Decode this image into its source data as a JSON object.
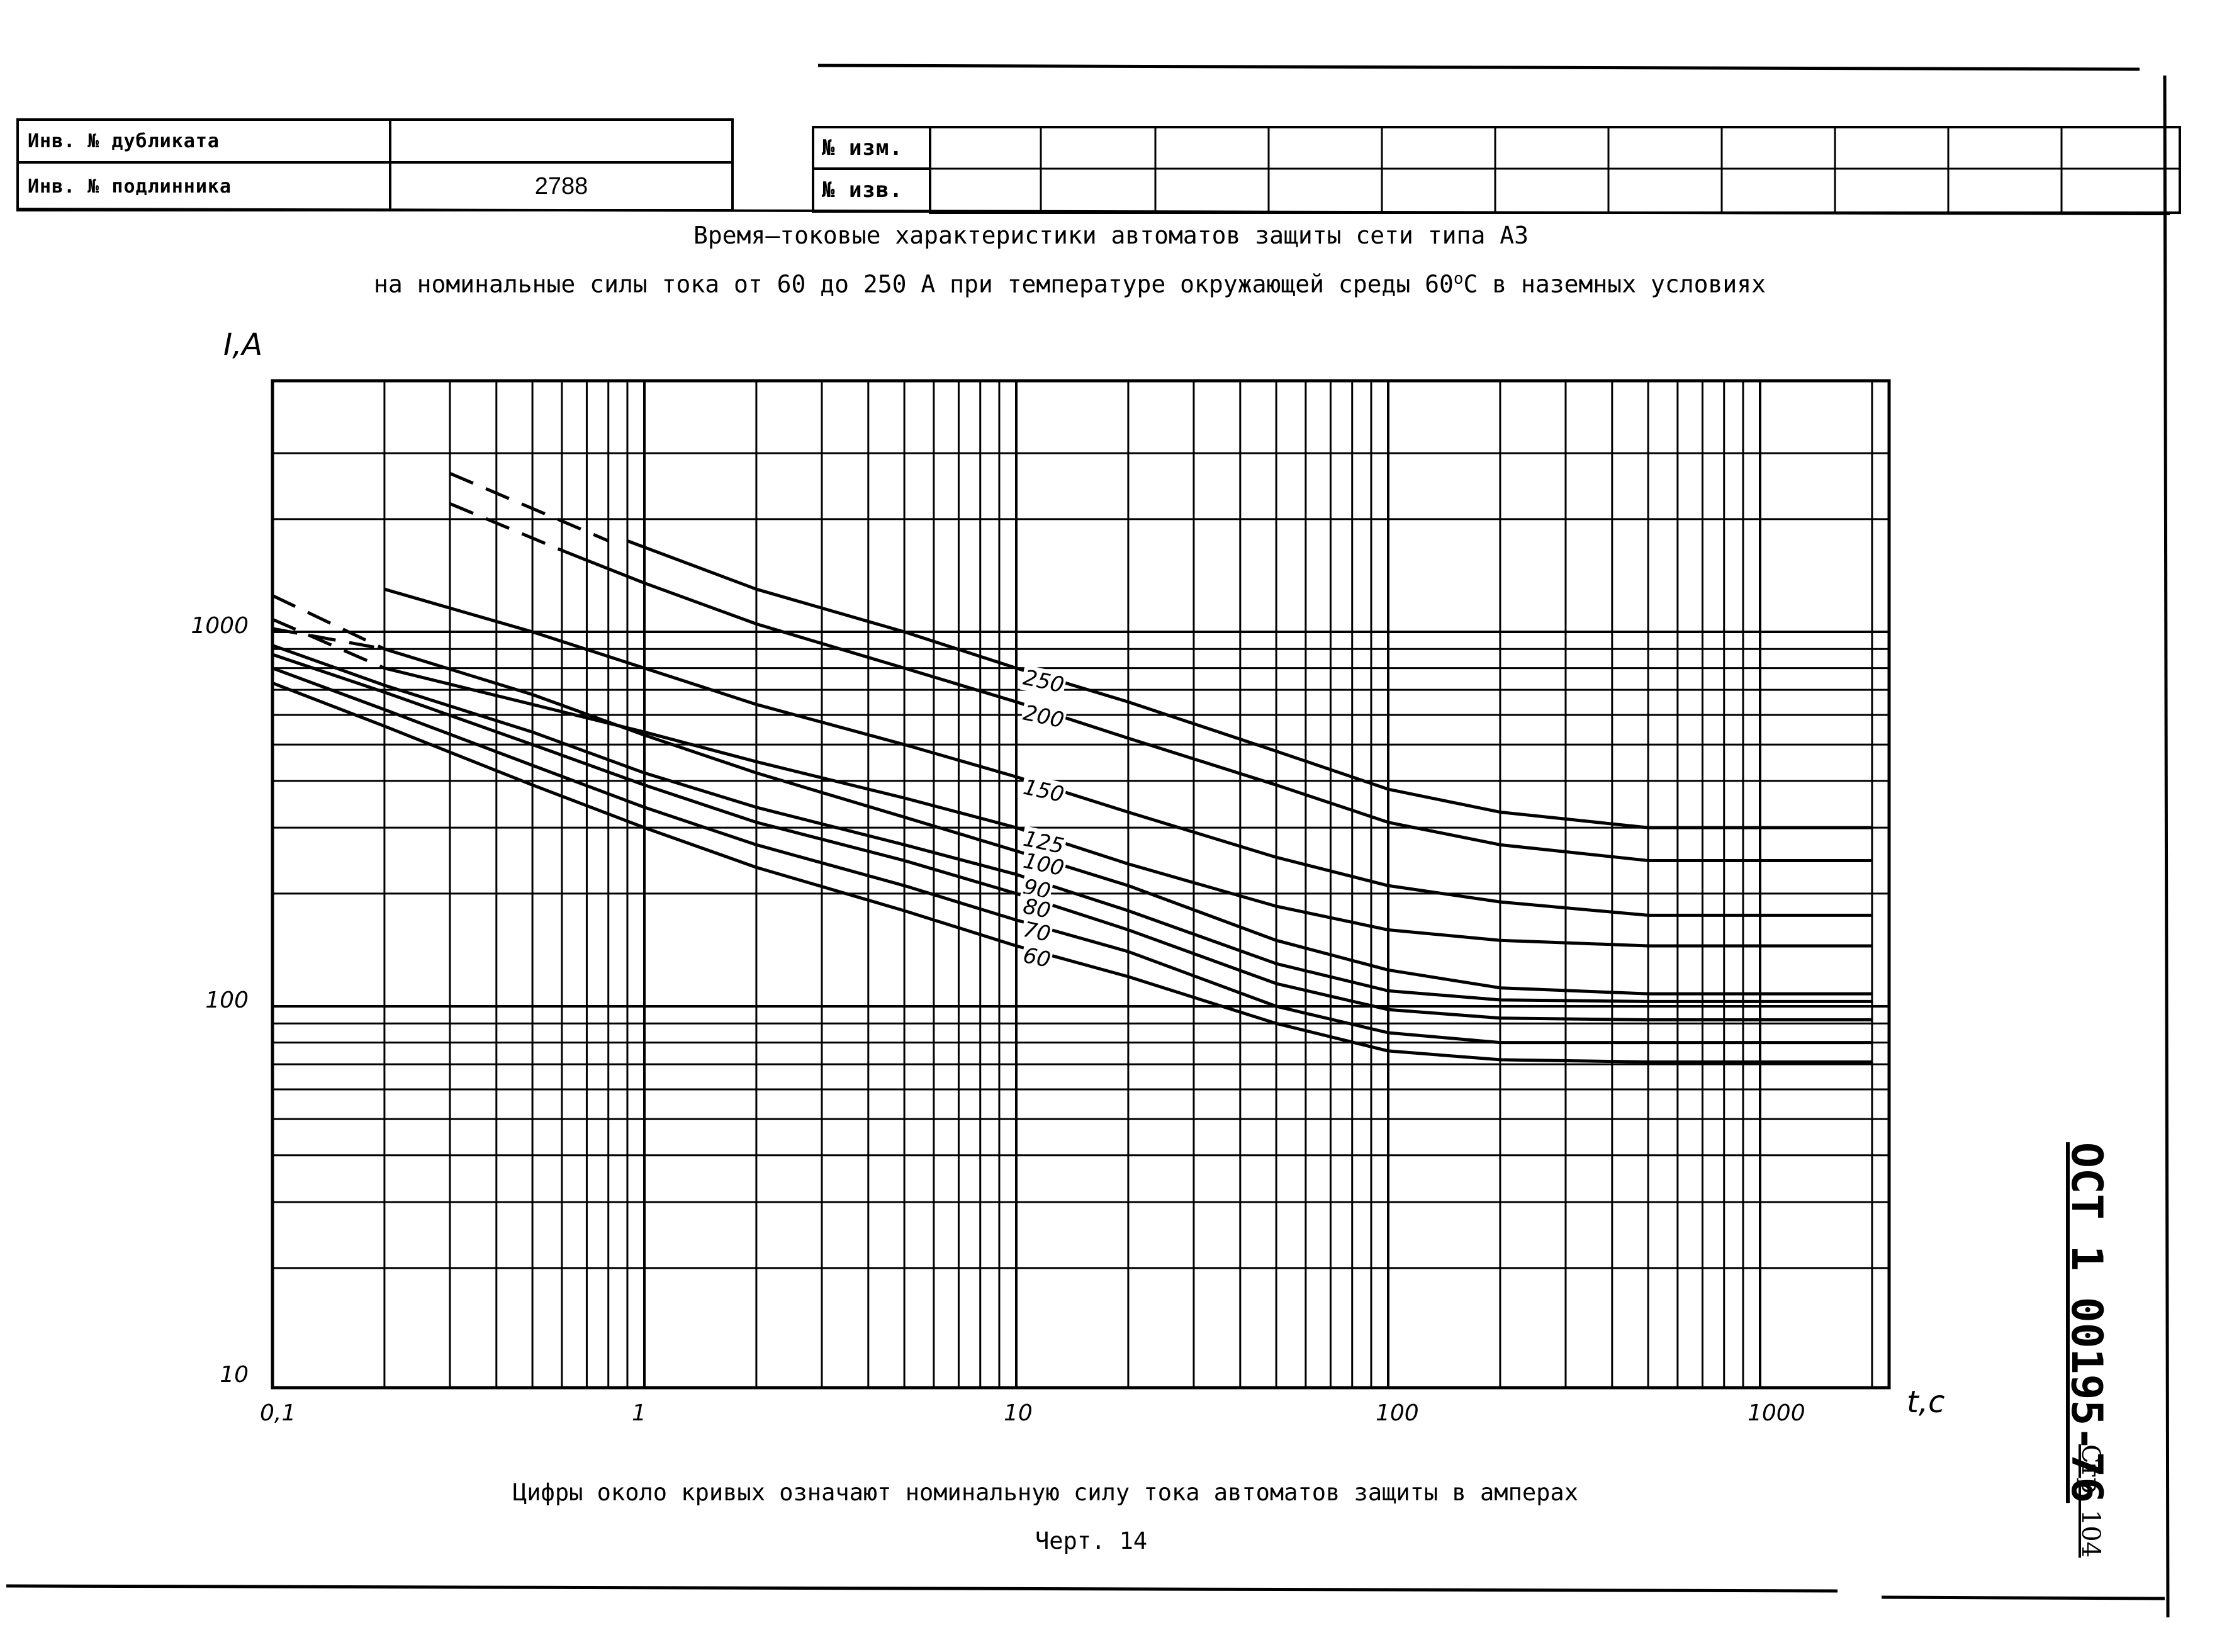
{
  "stamp": {
    "dup_label": "Инв. № дубликата",
    "dup_value": "",
    "orig_label": "Инв. № подлинника",
    "orig_value": "2788",
    "rev_label_1": "№ изм.",
    "rev_label_2": "№ изв."
  },
  "title_line1": "Время–токовые характеристики автоматов защиты сети типа А3",
  "title_line2_pre": "на номинальные силы тока от 60 до 250 А при температуре окружающей среды  60",
  "title_line2_sup": "o",
  "title_line2_post": "С в наземных условиях",
  "note": "Цифры около кривых означают номинальную силу тока автоматов защиты в амперах",
  "figure": "Черт. 14",
  "standard": "ОСТ 1 00195-76",
  "page": "Стр. 104",
  "chart_data": {
    "type": "line",
    "title": "Время–токовые характеристики автоматов защиты сети типа А3",
    "xlabel": "t,c",
    "ylabel": "I,A",
    "xscale": "log",
    "yscale": "log",
    "xlim": [
      0.1,
      2000
    ],
    "ylim": [
      10,
      3000
    ],
    "grid": true,
    "x_ticks": [
      "0,1",
      "1",
      "10",
      "100",
      "1000"
    ],
    "y_ticks": [
      "10",
      "100",
      "1000"
    ],
    "series": [
      {
        "name": "250",
        "dashed_x": [
          0.3,
          0.8
        ],
        "dashed_y": [
          2650,
          1750
        ],
        "x": [
          0.9,
          2,
          5,
          10,
          20,
          50,
          100,
          200,
          500,
          1000,
          2000
        ],
        "y": [
          1750,
          1300,
          1000,
          800,
          650,
          480,
          380,
          330,
          300,
          300,
          300
        ]
      },
      {
        "name": "200",
        "dashed_x": [
          0.3,
          0.6
        ],
        "dashed_y": [
          2200,
          1650
        ],
        "x": [
          0.6,
          1,
          2,
          5,
          10,
          20,
          50,
          100,
          200,
          500,
          1000,
          2000
        ],
        "y": [
          1650,
          1350,
          1050,
          800,
          650,
          520,
          390,
          310,
          270,
          245,
          245,
          245
        ]
      },
      {
        "name": "150",
        "dashed_x": [
          0.1,
          0.2
        ],
        "dashed_y": [
          1250,
          900
        ],
        "x": [
          0.2,
          0.5,
          1,
          2,
          5,
          10,
          20,
          50,
          100,
          200,
          500,
          1000,
          2000
        ],
        "y": [
          1300,
          1000,
          800,
          640,
          500,
          410,
          330,
          250,
          210,
          190,
          175,
          175,
          175
        ]
      },
      {
        "name": "125",
        "dashed_x": [
          0.1,
          0.2
        ],
        "dashed_y": [
          1080,
          800
        ],
        "x": [
          0.2,
          0.5,
          1,
          2,
          5,
          10,
          20,
          50,
          100,
          200,
          500,
          1000,
          2000
        ],
        "y": [
          800,
          640,
          540,
          450,
          360,
          300,
          240,
          185,
          160,
          150,
          145,
          145,
          145
        ]
      },
      {
        "name": "100",
        "dashed_x": [
          0.1,
          0.2
        ],
        "dashed_y": [
          1020,
          900
        ],
        "x": [
          0.2,
          0.5,
          1,
          2,
          5,
          10,
          20,
          50,
          100,
          200,
          500,
          1000,
          2000
        ],
        "y": [
          900,
          680,
          530,
          420,
          320,
          260,
          210,
          150,
          125,
          112,
          108,
          108,
          108
        ]
      },
      {
        "name": "90",
        "x": [
          0.1,
          0.2,
          0.5,
          1,
          2,
          5,
          10,
          20,
          50,
          100,
          200,
          500,
          1000,
          2000
        ],
        "y": [
          920,
          720,
          540,
          420,
          340,
          270,
          225,
          180,
          130,
          110,
          104,
          103,
          103,
          103
        ]
      },
      {
        "name": "80",
        "x": [
          0.1,
          0.2,
          0.5,
          1,
          2,
          5,
          10,
          20,
          50,
          100,
          200,
          500,
          1000,
          2000
        ],
        "y": [
          870,
          690,
          500,
          390,
          310,
          245,
          200,
          160,
          115,
          98,
          93,
          92,
          92,
          92
        ]
      },
      {
        "name": "70",
        "x": [
          0.1,
          0.2,
          0.5,
          1,
          2,
          5,
          10,
          20,
          50,
          100,
          200,
          500,
          1000,
          2000
        ],
        "y": [
          800,
          620,
          440,
          340,
          270,
          210,
          170,
          140,
          100,
          85,
          80,
          80,
          80,
          80
        ]
      },
      {
        "name": "60",
        "x": [
          0.1,
          0.2,
          0.5,
          1,
          2,
          5,
          10,
          20,
          50,
          100,
          200,
          500,
          1000,
          2000
        ],
        "y": [
          730,
          560,
          390,
          300,
          235,
          180,
          145,
          120,
          90,
          76,
          72,
          71,
          71,
          71
        ]
      }
    ]
  }
}
